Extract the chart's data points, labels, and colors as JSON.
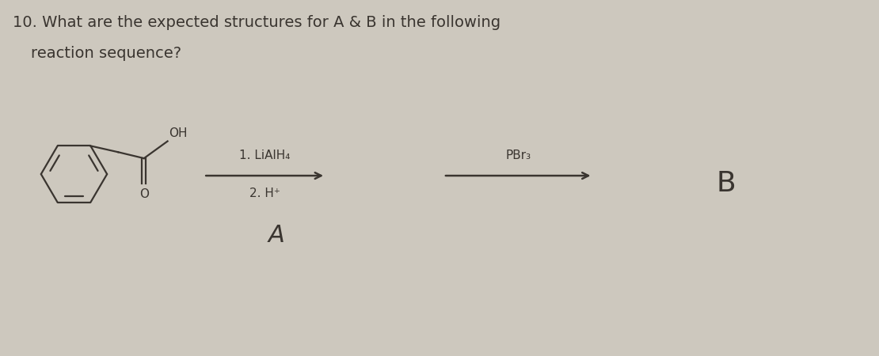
{
  "bg_color": "#cdc8be",
  "title_line1": "10. What are the expected structures for A & B in the following",
  "title_line2": "    reaction sequence?",
  "reagent1_line1": "1. LiAlH₄",
  "reagent1_line2": "2. H⁺",
  "reagent2": "PBr₃",
  "label_a": "A",
  "label_b": "B",
  "font_color": "#3a3530",
  "font_size_title": 14,
  "font_size_reagent": 11,
  "font_size_label_a": 22,
  "font_size_label_b": 26
}
